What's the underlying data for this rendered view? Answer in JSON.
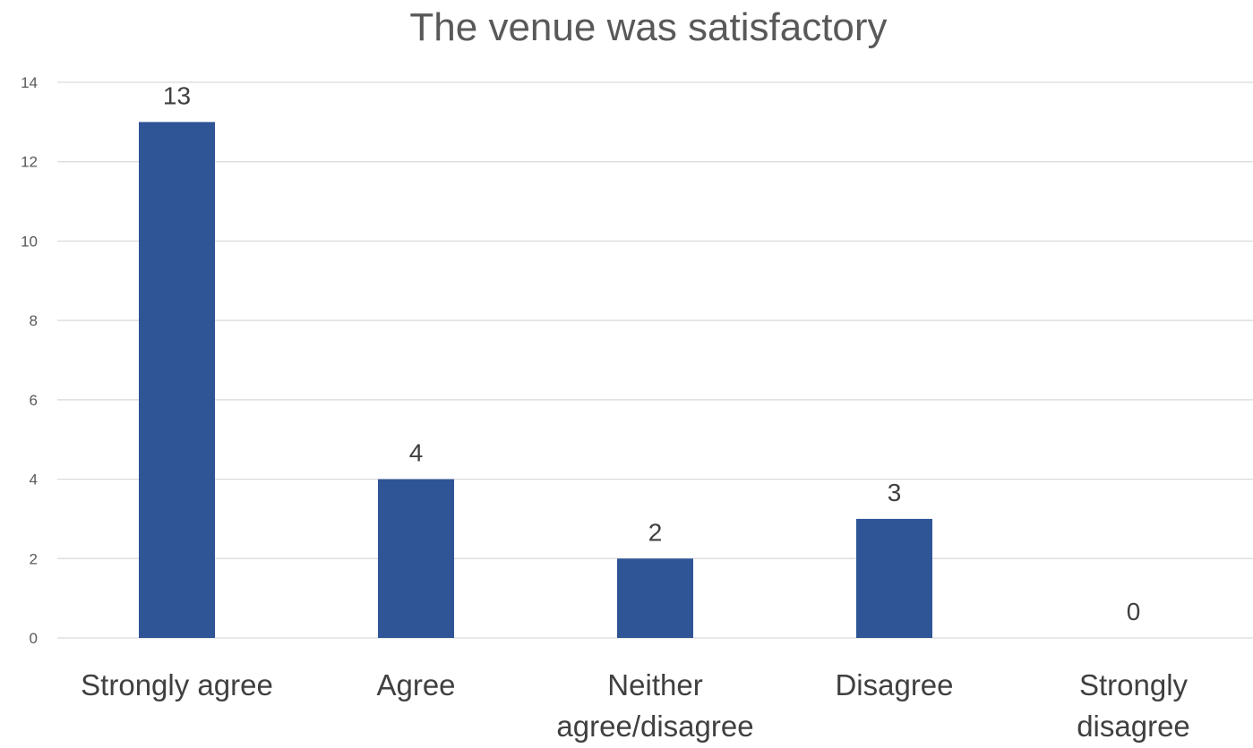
{
  "chart_data": {
    "type": "bar",
    "title": "The venue was satisfactory",
    "xlabel": "",
    "ylabel": "",
    "categories": [
      [
        "Strongly agree"
      ],
      [
        "Agree"
      ],
      [
        "Neither",
        "agree/disagree"
      ],
      [
        "Disagree"
      ],
      [
        "Strongly",
        "disagree"
      ]
    ],
    "values": [
      13,
      4,
      2,
      3,
      0
    ],
    "ylim": [
      0,
      14
    ],
    "yticks": [
      0,
      2,
      4,
      6,
      8,
      10,
      12,
      14
    ],
    "grid": true,
    "legend": "none",
    "data_labels": true,
    "bar_color": "#2f5597"
  }
}
